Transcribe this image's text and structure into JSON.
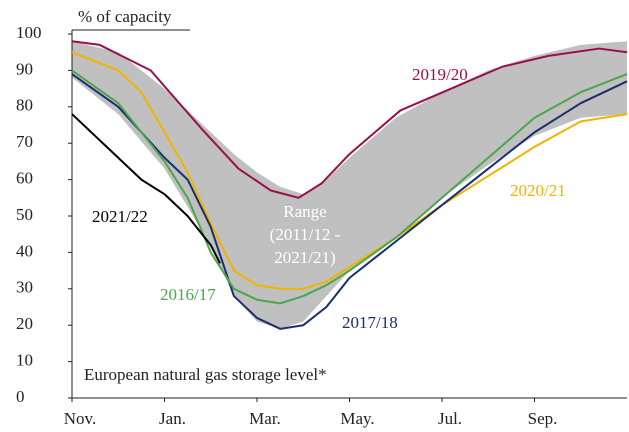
{
  "chart_data": {
    "type": "line",
    "y_label": "% of capacity",
    "annotation": "European natural gas storage level*",
    "ylim": [
      0,
      100
    ],
    "yticks": [
      0,
      10,
      20,
      30,
      40,
      50,
      60,
      70,
      80,
      90,
      100
    ],
    "xlim": [
      0,
      12
    ],
    "xticks": [
      {
        "value": 0,
        "label": "Nov."
      },
      {
        "value": 2,
        "label": "Jan."
      },
      {
        "value": 4,
        "label": "Mar."
      },
      {
        "value": 6,
        "label": "May."
      },
      {
        "value": 8,
        "label": "Jul."
      },
      {
        "value": 10,
        "label": "Sep."
      }
    ],
    "band": {
      "label": [
        "Range",
        "(2011/12 -",
        "2021/21)"
      ],
      "color": "#c0c0c0",
      "x": [
        0,
        1,
        2,
        3,
        3.5,
        4,
        4.5,
        5,
        5.5,
        6,
        7,
        8,
        9,
        10,
        11,
        12
      ],
      "upper": [
        98,
        95,
        85,
        73,
        67,
        62,
        58,
        56,
        60,
        66,
        77,
        84,
        90,
        94,
        97,
        98
      ],
      "lower": [
        88,
        78,
        63,
        42,
        28,
        21,
        19,
        21,
        28,
        35,
        44,
        55,
        64,
        72,
        77,
        78
      ]
    },
    "series": [
      {
        "name": "2019/20",
        "color": "#9b0e4e",
        "x": [
          0,
          0.6,
          1.7,
          2.8,
          3.6,
          4.3,
          4.9,
          5.4,
          6,
          7.1,
          8.2,
          9.3,
          10.3,
          11.4,
          12
        ],
        "values": [
          98,
          97,
          90,
          74,
          63,
          57,
          55,
          59,
          67,
          79,
          85,
          91,
          94,
          96,
          95
        ]
      },
      {
        "name": "2020/21",
        "color": "#f0b400",
        "x": [
          0,
          1,
          1.5,
          2,
          2.5,
          3,
          3.5,
          4,
          4.5,
          5,
          5.5,
          6,
          7,
          8,
          9,
          10,
          11,
          12
        ],
        "values": [
          95,
          90,
          84,
          73,
          62,
          48,
          35,
          31,
          30,
          30,
          32,
          36,
          44,
          53,
          61,
          69,
          76,
          78
        ]
      },
      {
        "name": "2017/18",
        "color": "#1a2f6e",
        "x": [
          0,
          1,
          2,
          2.5,
          3,
          3.5,
          4,
          4.5,
          5,
          5.5,
          6,
          7,
          8,
          9,
          10,
          11,
          12
        ],
        "values": [
          89,
          80,
          66,
          60,
          47,
          28,
          22,
          19,
          20,
          25,
          33,
          43,
          53,
          63,
          73,
          81,
          87
        ]
      },
      {
        "name": "2016/17",
        "color": "#4ca64c",
        "x": [
          0,
          1,
          2,
          2.5,
          3,
          3.5,
          4,
          4.5,
          5,
          5.5,
          6,
          7,
          8,
          9,
          10,
          11,
          12
        ],
        "values": [
          90,
          81,
          65,
          55,
          40,
          30,
          27,
          26,
          28,
          31,
          35,
          44,
          55,
          66,
          77,
          84,
          89
        ]
      },
      {
        "name": "2021/22",
        "color": "#000000",
        "x": [
          0,
          0.5,
          1,
          1.5,
          2,
          2.5,
          3,
          3.2
        ],
        "values": [
          78,
          72,
          66,
          60,
          56,
          50,
          42,
          37
        ]
      }
    ]
  }
}
